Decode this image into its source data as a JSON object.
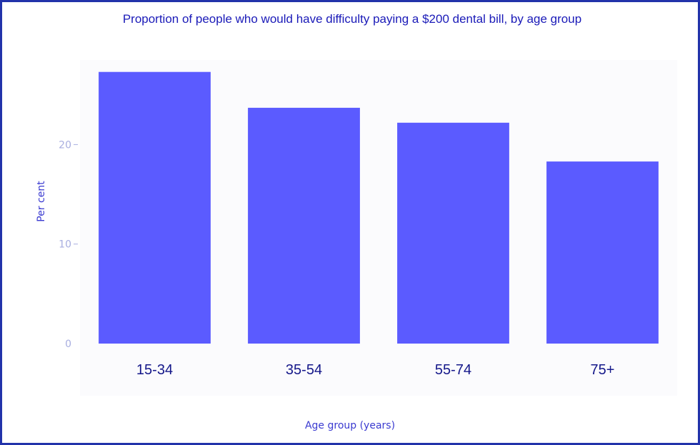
{
  "chart_data": {
    "type": "bar",
    "title": "Proportion of people who would have difficulty paying a $200 dental bill, by age group",
    "xlabel": "Age group (years)",
    "ylabel": "Per cent",
    "categories": [
      "15-34",
      "35-54",
      "55-74",
      "75+"
    ],
    "values": [
      27.3,
      23.7,
      22.2,
      18.3
    ],
    "ylim": [
      0,
      28.5
    ],
    "yticks": [
      0,
      10,
      20
    ],
    "bar_color": "#5b5bff",
    "grid": false,
    "legend": "none"
  }
}
